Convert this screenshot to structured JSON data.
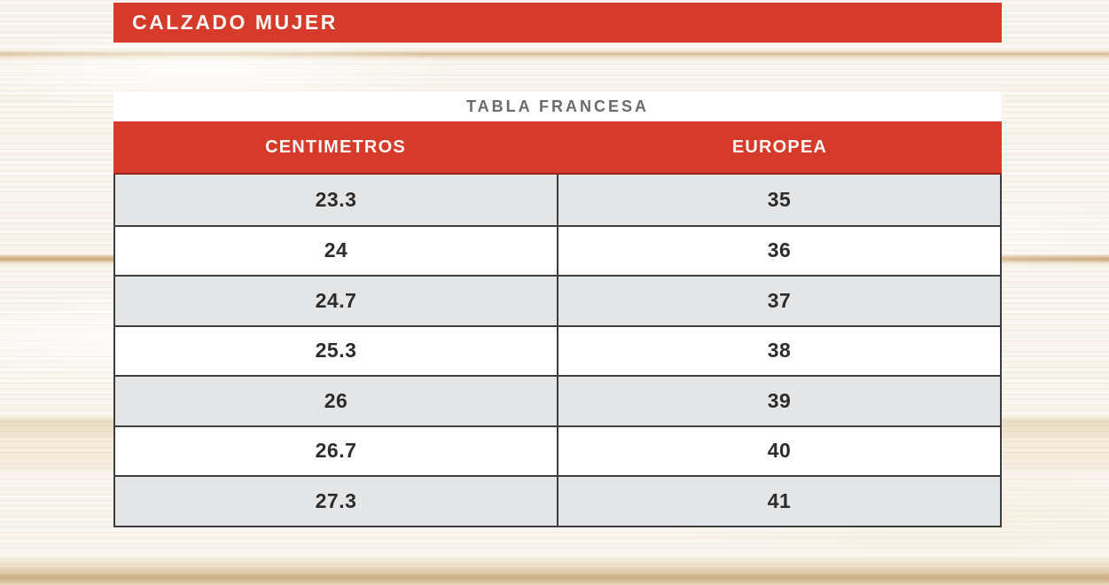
{
  "banner": {
    "title": "CALZADO MUJER"
  },
  "table": {
    "title": "TABLA FRANCESA",
    "columns": [
      "CENTIMETROS",
      "EUROPEA"
    ],
    "rows": [
      [
        "23.3",
        "35"
      ],
      [
        "24",
        "36"
      ],
      [
        "24.7",
        "37"
      ],
      [
        "25.3",
        "38"
      ],
      [
        "26",
        "39"
      ],
      [
        "26.7",
        "40"
      ],
      [
        "27.3",
        "41"
      ]
    ]
  },
  "chart_data": {
    "type": "table",
    "title": "TABLA FRANCESA",
    "columns": [
      "CENTIMETROS",
      "EUROPEA"
    ],
    "rows": [
      [
        23.3,
        35
      ],
      [
        24,
        36
      ],
      [
        24.7,
        37
      ],
      [
        25.3,
        38
      ],
      [
        26,
        39
      ],
      [
        26.7,
        40
      ],
      [
        27.3,
        41
      ]
    ]
  },
  "colors": {
    "accent_red": "#d63a2b",
    "header_divider_dark_red": "#8f2619",
    "row_alt_gray": "#e4e5e7",
    "border_dark": "#3d3d3d",
    "table_title_gray": "#6b6b6b",
    "text_dark": "#2c2c2c"
  }
}
